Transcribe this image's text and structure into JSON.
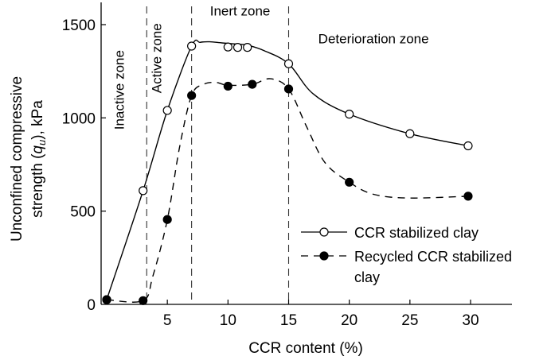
{
  "chart_data": {
    "type": "line",
    "title": "",
    "xlabel": "CCR content (%)",
    "ylabel_line1": "Unconfined compressive",
    "ylabel_line2_prefix": "strength (",
    "ylabel_symbol": "q",
    "ylabel_subscript": "u",
    "ylabel_line2_suffix": "), kPa",
    "xlim": [
      0,
      33
    ],
    "ylim": [
      0,
      1600
    ],
    "xticks": [
      5,
      10,
      15,
      20,
      25,
      30
    ],
    "xtick_labels": [
      "5",
      "10",
      "15",
      "20",
      "25",
      "30"
    ],
    "yticks": [
      0,
      500,
      1000,
      1500
    ],
    "ytick_labels": [
      "0",
      "500",
      "1000",
      "1500"
    ],
    "zone_boundaries": [
      3.3,
      7.0,
      15.0
    ],
    "zones": [
      {
        "label": "Inactive zone",
        "x": 1.4,
        "y": 1150,
        "vertical": true
      },
      {
        "label": "Active zone",
        "x": 4.5,
        "y": 1320,
        "vertical": true
      },
      {
        "label": "Inert zone",
        "x": 11.0,
        "y": 1550,
        "vertical": false
      },
      {
        "label": "Deterioration zone",
        "x": 22.0,
        "y": 1400,
        "vertical": false
      }
    ],
    "series": [
      {
        "name": "CCR stabilized clay",
        "style": "solid",
        "marker": "open-circle",
        "x": [
          0,
          3,
          5,
          7,
          10,
          10.8,
          11.6,
          15,
          20,
          25,
          29.8
        ],
        "y": [
          25,
          610,
          1040,
          1385,
          1380,
          1378,
          1378,
          1290,
          1020,
          915,
          850
        ],
        "curve_x": [
          0,
          3,
          5,
          7,
          7.7,
          8.5,
          9.5,
          10.8,
          11.6,
          13,
          15,
          17,
          20,
          25,
          29.8
        ],
        "curve_y": [
          25,
          610,
          1040,
          1385,
          1405,
          1408,
          1402,
          1395,
          1390,
          1360,
          1290,
          1130,
          1020,
          915,
          850
        ]
      },
      {
        "name": "Recycled CCR stabilized clay",
        "style": "dashed",
        "marker": "filled-circle",
        "x": [
          0,
          3,
          5,
          7,
          10,
          12,
          15,
          20,
          29.8
        ],
        "y": [
          25,
          20,
          455,
          1120,
          1170,
          1180,
          1155,
          655,
          580
        ],
        "curve_x": [
          0,
          3,
          3.8,
          5,
          6,
          7,
          8,
          9,
          10,
          12,
          13.5,
          15,
          16.5,
          18,
          20,
          22,
          25,
          29.8
        ],
        "curve_y": [
          25,
          20,
          150,
          455,
          840,
          1120,
          1180,
          1190,
          1175,
          1180,
          1210,
          1155,
          950,
          760,
          655,
          590,
          570,
          580
        ]
      }
    ],
    "legend": {
      "position": "center-right",
      "entries": [
        {
          "line1": "CCR stabilized clay",
          "line2": ""
        },
        {
          "line1": "Recycled CCR stabilized",
          "line2": "clay"
        }
      ]
    },
    "grid": false
  }
}
